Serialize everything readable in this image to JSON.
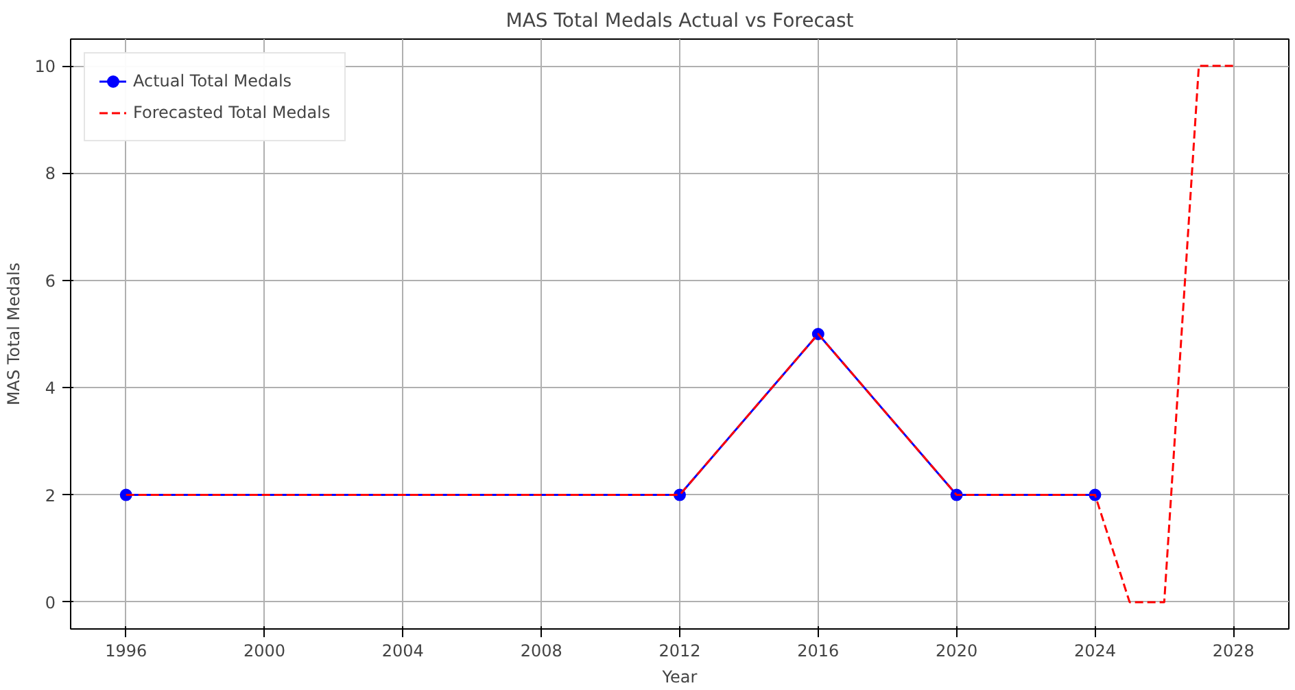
{
  "chart_data": {
    "type": "line",
    "title": "MAS Total Medals Actual vs Forecast",
    "xlabel": "Year",
    "ylabel": "MAS Total Medals",
    "xlim": [
      1994.4,
      2029.6
    ],
    "xticks": [
      1996,
      2000,
      2004,
      2008,
      2012,
      2016,
      2020,
      2024,
      2028
    ],
    "ylim": [
      -0.5,
      10.5
    ],
    "yticks": [
      0,
      2,
      4,
      6,
      8,
      10
    ],
    "grid": true,
    "legend": "top left",
    "series": [
      {
        "name": "Actual Total Medals",
        "color": "#0000ff",
        "marker": "circle",
        "line_style": "solid",
        "x": [
          1996,
          2012,
          2016,
          2020,
          2024
        ],
        "values": [
          2,
          2,
          5,
          2,
          2
        ]
      },
      {
        "name": "Forecasted Total Medals",
        "color": "#ff0000",
        "marker": "none",
        "line_style": "dashed",
        "x": [
          1996,
          2012,
          2016,
          2020,
          2024,
          2025,
          2026,
          2027,
          2028
        ],
        "values": [
          2,
          2,
          5,
          2,
          2,
          0,
          0,
          10,
          10
        ]
      }
    ]
  }
}
